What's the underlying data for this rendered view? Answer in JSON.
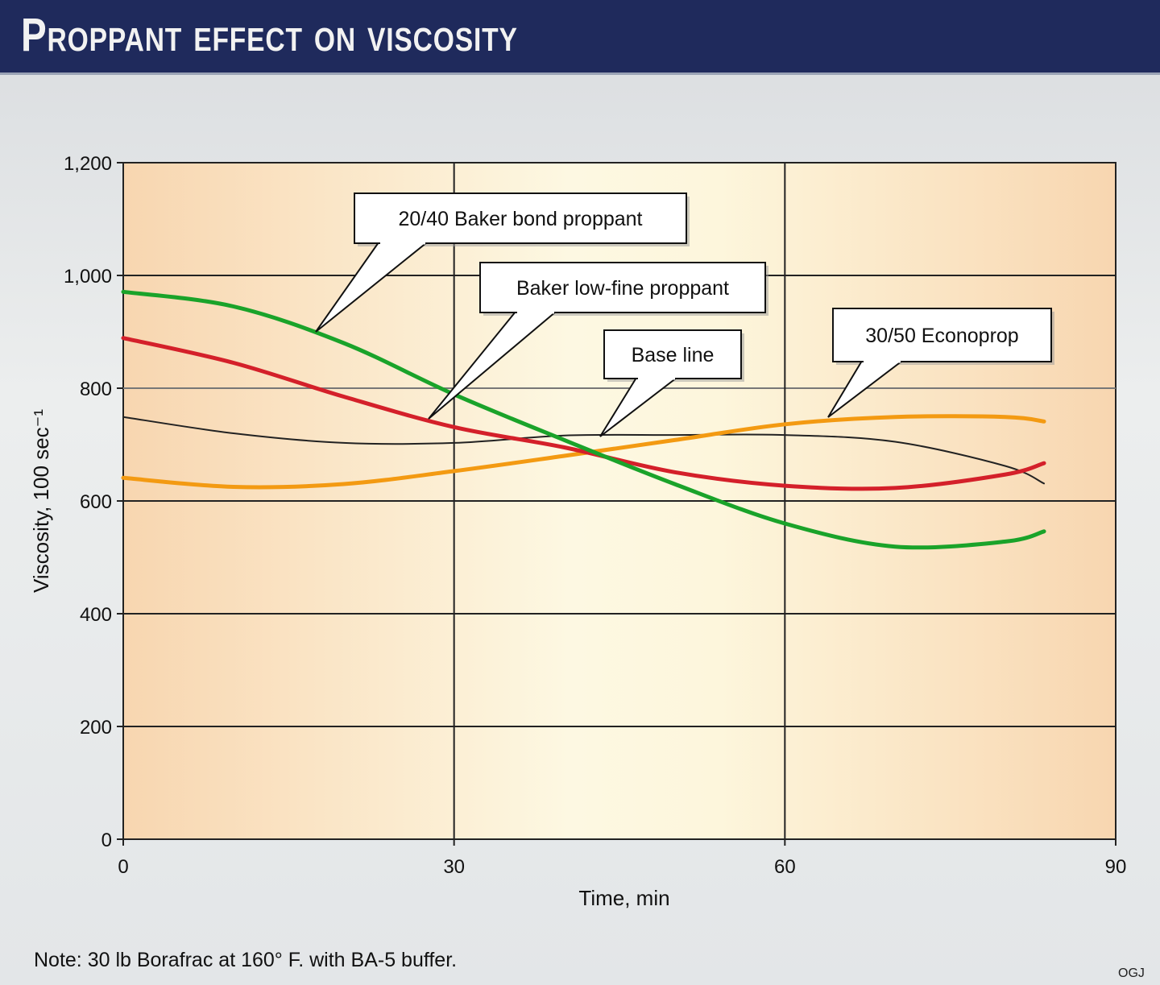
{
  "title": "Proppant effect on viscosity",
  "note": "Note: 30 lb Borafrac at 160° F. with BA-5 buffer.",
  "credit": "OGJ",
  "chart_data": {
    "type": "line",
    "title": "Proppant effect on viscosity",
    "xlabel": "Time, min",
    "ylabel": "Viscosity, 100 sec⁻¹",
    "xlim": [
      0,
      90
    ],
    "ylim": [
      0,
      1200
    ],
    "xticks": [
      "0",
      "30",
      "60",
      "90"
    ],
    "yticks": [
      "0",
      "200",
      "400",
      "600",
      "800",
      "1,000",
      "1,200"
    ],
    "grid": true,
    "x": [
      0,
      10,
      20,
      30,
      40,
      50,
      60,
      70,
      80,
      83.5
    ],
    "series": [
      {
        "name": "20/40 Baker bond proppant",
        "color": "#1aa32a",
        "values": [
          971,
          945,
          880,
          789,
          708,
          630,
          560,
          519,
          528,
          546
        ]
      },
      {
        "name": "Baker low-fine proppant",
        "color": "#d4202a",
        "values": [
          889,
          845,
          785,
          731,
          695,
          651,
          627,
          623,
          647,
          667
        ]
      },
      {
        "name": "Base line",
        "color": "#222222",
        "values": [
          749,
          720,
          703,
          703,
          716,
          717,
          717,
          705,
          662,
          631
        ]
      },
      {
        "name": "30/50 Econoprop",
        "color": "#f39a12",
        "values": [
          641,
          625,
          630,
          653,
          680,
          708,
          736,
          749,
          749,
          741
        ]
      }
    ]
  }
}
